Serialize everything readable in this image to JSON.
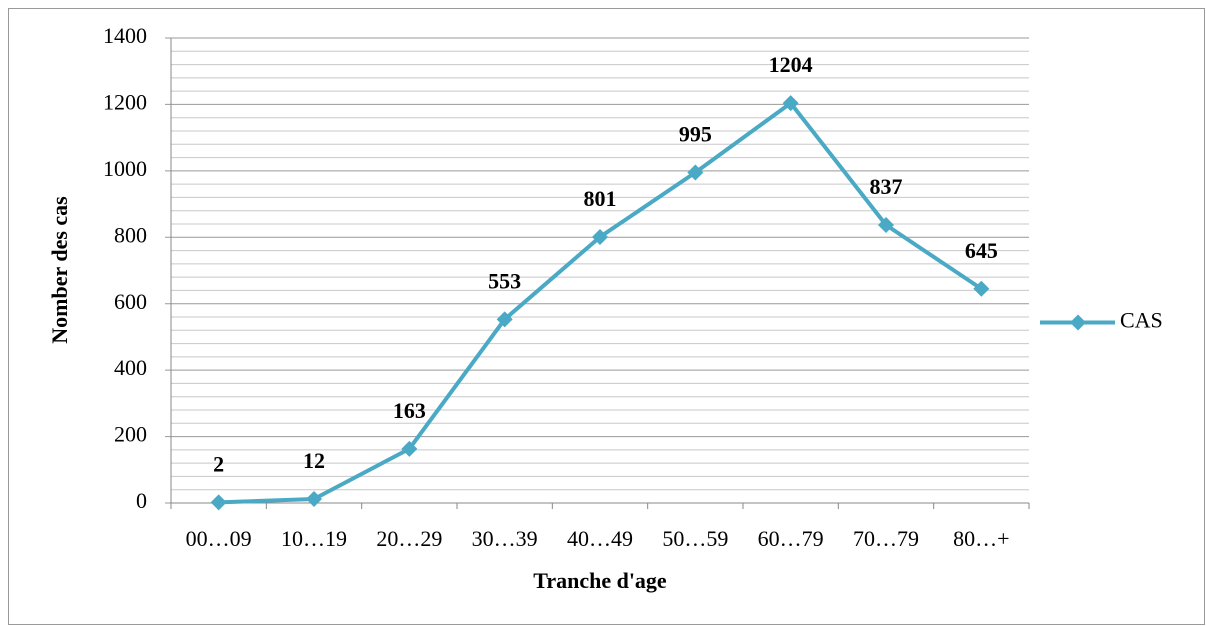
{
  "chart_data": {
    "type": "line",
    "categories": [
      "00…09",
      "10…19",
      "20…29",
      "30…39",
      "40…49",
      "50…59",
      "60…79",
      "70…79",
      "80…+"
    ],
    "series": [
      {
        "name": "CAS",
        "color": "#4aa9c4",
        "values": [
          2,
          12,
          163,
          553,
          801,
          995,
          1204,
          837,
          645
        ]
      }
    ],
    "xlabel": "Tranche d'age",
    "ylabel": "Nomber des cas",
    "ylim": [
      0,
      1400
    ],
    "yticks": [
      0,
      200,
      400,
      600,
      800,
      1000,
      1200,
      1400
    ],
    "grid": true,
    "minor_grid_divisions": 5,
    "legend": "right",
    "data_labels": true
  }
}
